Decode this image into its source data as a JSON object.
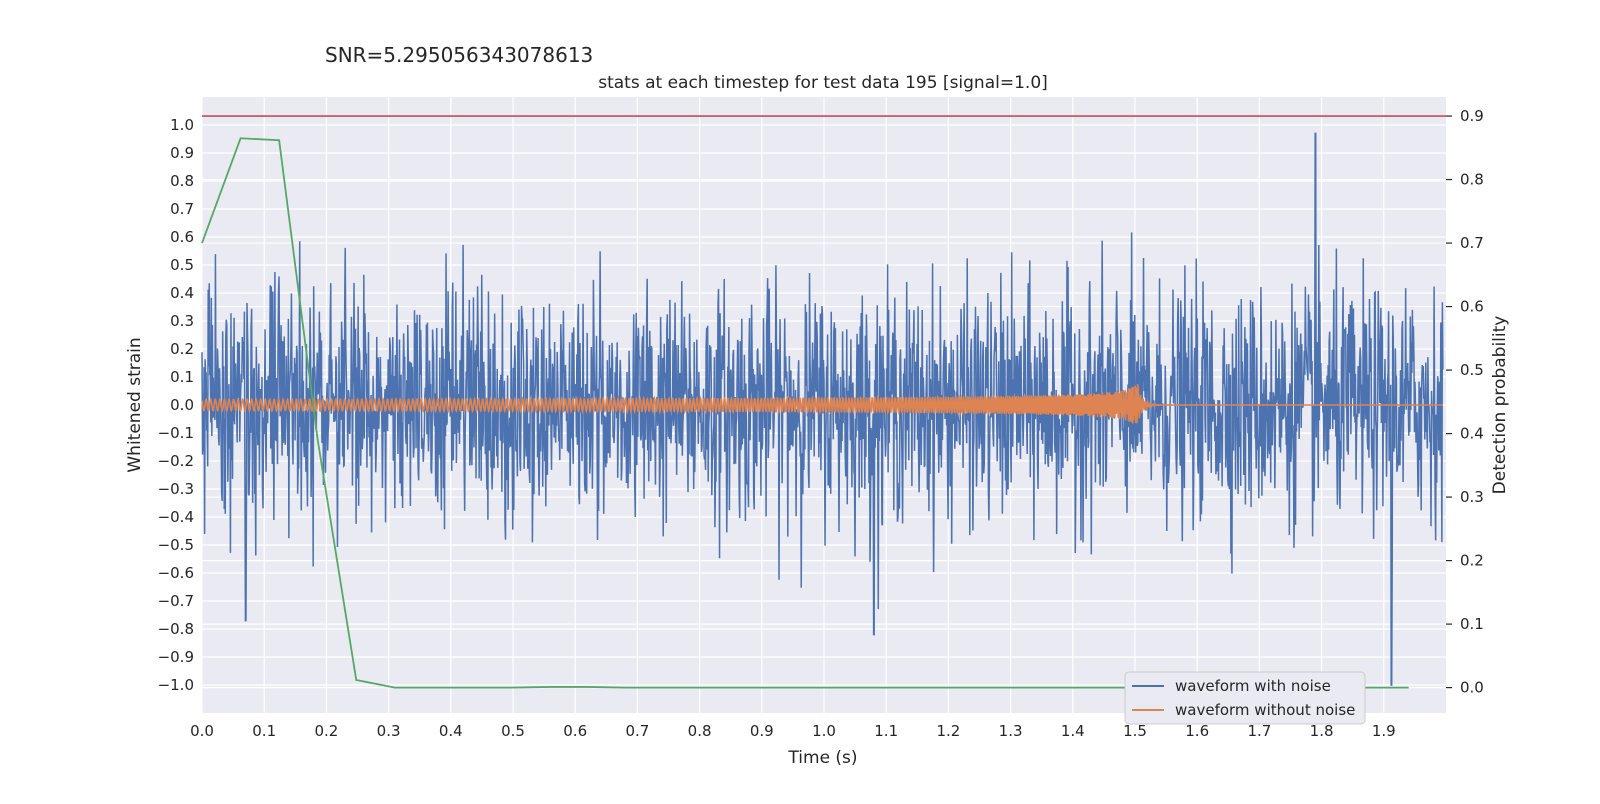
{
  "figure": {
    "suptitle": "SNR=5.295056343078613",
    "title": "stats at each timestep for test data 195 [signal=1.0]"
  },
  "chart_data": {
    "type": "line",
    "title": "stats at each timestep for test data 195 [signal=1.0]",
    "xlabel": "Time (s)",
    "ylabel": "Whitened strain",
    "y2label": "Detection probability",
    "xlim": [
      0.0,
      2.0
    ],
    "ylim": [
      -1.1,
      1.1
    ],
    "y2lim": [
      -0.04,
      0.93
    ],
    "x_ticks": [
      0.0,
      0.1,
      0.2,
      0.3,
      0.4,
      0.5,
      0.6,
      0.7,
      0.8,
      0.9,
      1.0,
      1.1,
      1.2,
      1.3,
      1.4,
      1.5,
      1.6,
      1.7,
      1.8,
      1.9
    ],
    "x_tick_labels": [
      "0.0",
      "0.1",
      "0.2",
      "0.3",
      "0.4",
      "0.5",
      "0.6",
      "0.7",
      "0.8",
      "0.9",
      "1.0",
      "1.1",
      "1.2",
      "1.3",
      "1.4",
      "1.5",
      "1.6",
      "1.7",
      "1.8",
      "1.9"
    ],
    "y_ticks": [
      1.0,
      0.9,
      0.8,
      0.7,
      0.6,
      0.5,
      0.4,
      0.3,
      0.2,
      0.1,
      0.0,
      -0.1,
      -0.2,
      -0.3,
      -0.4,
      -0.5,
      -0.6,
      -0.7,
      -0.8,
      -0.9,
      -1.0
    ],
    "y_tick_labels": [
      "1.0",
      "0.9",
      "0.8",
      "0.7",
      "0.6",
      "0.5",
      "0.4",
      "0.3",
      "0.2",
      "0.1",
      "0.0",
      "−0.1",
      "−0.2",
      "−0.3",
      "−0.4",
      "−0.5",
      "−0.6",
      "−0.7",
      "−0.8",
      "−0.9",
      "−1.0"
    ],
    "y2_ticks": [
      0.9,
      0.8,
      0.7,
      0.6,
      0.5,
      0.4,
      0.3,
      0.2,
      0.1,
      0.0
    ],
    "y2_tick_labels": [
      "0.9",
      "0.8",
      "0.7",
      "0.6",
      "0.5",
      "0.4",
      "0.3",
      "0.2",
      "0.1",
      "0.0"
    ],
    "grid": true,
    "legend_position": "bottom-right",
    "colors": {
      "background": "#eaeaf2",
      "grid": "#ffffff",
      "noise": "#4c72b0",
      "clean": "#dd8452",
      "probability": "#55a868",
      "threshold": "#c44e52"
    },
    "series": [
      {
        "name": "waveform with noise",
        "axis": "left",
        "description_values": "dense noisy strain, amplitude mostly within ±0.5, peak 0.97 near t=1.79, minimum -1.0 near t=1.91"
      },
      {
        "name": "waveform without noise",
        "axis": "left",
        "chirp": {
          "start": 0.0,
          "merger": 1.505,
          "end": 2.0,
          "start_amplitude": 0.02,
          "peak_amplitude": 0.16
        }
      },
      {
        "axis": "right",
        "x": [
          0.0,
          0.062,
          0.124,
          0.186,
          0.248,
          0.31,
          0.372,
          0.434,
          0.496,
          0.558,
          0.62,
          0.682,
          0.744,
          0.806,
          0.868,
          0.93,
          0.992,
          1.054,
          1.116,
          1.178,
          1.24,
          1.302,
          1.364,
          1.426,
          1.488,
          1.55,
          1.612,
          1.674,
          1.736,
          1.798,
          1.86,
          1.922,
          1.94
        ],
        "values": [
          0.7,
          0.865,
          0.862,
          0.39,
          0.012,
          0.0,
          0.0,
          0.0,
          0.0,
          0.001,
          0.001,
          0.0,
          0.0,
          0.0,
          0.0,
          0.0,
          0.0,
          0.0,
          0.0,
          0.0,
          0.0,
          0.0,
          0.0,
          0.0,
          0.0,
          0.0,
          0.0,
          0.0,
          0.0,
          0.0,
          0.0,
          0.0,
          0.0
        ]
      },
      {
        "axis": "right",
        "x": [
          0.0,
          2.0
        ],
        "values": [
          0.9,
          0.9
        ]
      }
    ]
  },
  "legend": {
    "items": [
      "waveform with noise",
      "waveform without noise"
    ]
  }
}
